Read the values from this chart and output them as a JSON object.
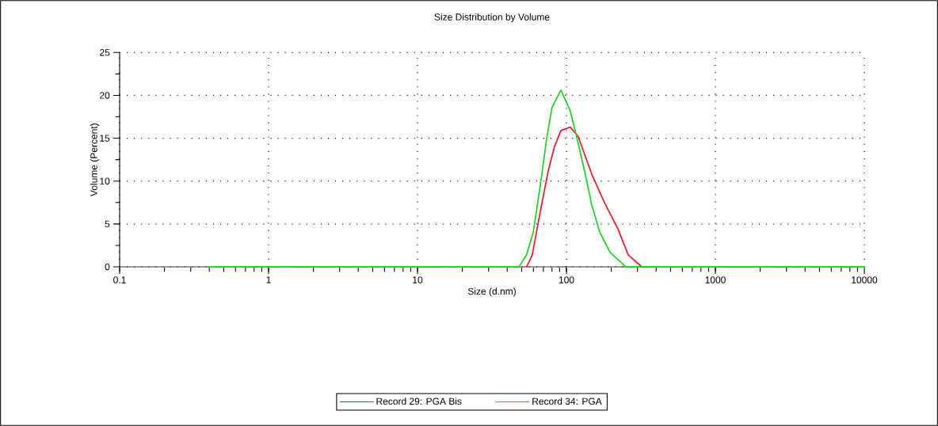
{
  "chart_data": {
    "type": "line",
    "title": "Size Distribution by Volume",
    "xlabel": "Size (d.nm)",
    "ylabel": "Volume (Percent)",
    "log": "x",
    "xlim": [
      0.1,
      10000
    ],
    "xticks": [
      0.1,
      1,
      10,
      100,
      1000,
      10000
    ],
    "ylim": [
      0,
      25
    ],
    "yticks": [
      0,
      5,
      10,
      15,
      20,
      25
    ],
    "grid": true,
    "legend": "bottom",
    "marker": "none",
    "line_style": "solid",
    "series": [
      {
        "name": "Record 29: PGA Bis",
        "color": "#e0202a",
        "x": [
          54,
          59,
          67,
          75.5,
          83,
          91.8,
          106,
          120,
          148,
          180,
          222,
          260,
          320
        ],
        "values": [
          0,
          1.4,
          6.6,
          11.2,
          14.0,
          15.9,
          16.3,
          15.2,
          10.8,
          7.5,
          4.4,
          1.4,
          0
        ]
      },
      {
        "name": "Record 34: PGA",
        "color": "#22d02a",
        "x": [
          0.4,
          48,
          54,
          60,
          67,
          73.6,
          80,
          91.8,
          106,
          117,
          131,
          148,
          167,
          196,
          250,
          10000
        ],
        "values": [
          0,
          0,
          1.4,
          4.1,
          9.7,
          14.9,
          18.6,
          20.6,
          18.2,
          15.2,
          11.5,
          7.2,
          4.1,
          1.7,
          0,
          0
        ]
      }
    ]
  }
}
